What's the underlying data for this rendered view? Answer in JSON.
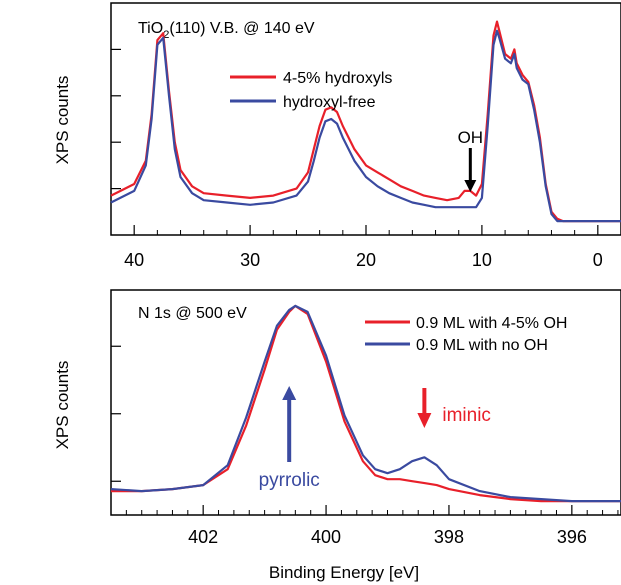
{
  "chart_data": [
    {
      "type": "line",
      "title": "TiO₂(110) V.B. @ 140 eV",
      "title_main": "TiO",
      "title_sub": "2",
      "title_rest": "(110) V.B. @ 140 eV",
      "ylabel": "XPS counts",
      "xlim": [
        42,
        -2
      ],
      "x_reversed": true,
      "x_ticks": [
        40,
        30,
        20,
        10,
        0
      ],
      "x_tick_labels": [
        "40",
        "30",
        "20",
        "10",
        "0"
      ],
      "legend_position": "top-center",
      "series": [
        {
          "name": "4-5% hydroxyls",
          "color": "#e8202a",
          "x": [
            42,
            40,
            39,
            38.5,
            38,
            37.5,
            37,
            36.5,
            36,
            35,
            34,
            32,
            30,
            28,
            26,
            25,
            24.5,
            24,
            23.5,
            23,
            22.5,
            22,
            21,
            20,
            19,
            18,
            17,
            16,
            15,
            14,
            13,
            12,
            11.5,
            11,
            10.5,
            10,
            9.5,
            9,
            8.7,
            8.5,
            8,
            7.5,
            7.2,
            7,
            6.5,
            6,
            5.5,
            5,
            4.5,
            4,
            3.5,
            3,
            2,
            0,
            -2
          ],
          "y": [
            0.25,
            0.3,
            0.4,
            0.6,
            0.92,
            0.95,
            0.7,
            0.48,
            0.36,
            0.29,
            0.26,
            0.25,
            0.24,
            0.25,
            0.28,
            0.35,
            0.45,
            0.55,
            0.62,
            0.63,
            0.61,
            0.55,
            0.45,
            0.38,
            0.35,
            0.32,
            0.29,
            0.27,
            0.25,
            0.24,
            0.23,
            0.24,
            0.27,
            0.27,
            0.25,
            0.3,
            0.6,
            0.94,
            1.0,
            0.96,
            0.86,
            0.84,
            0.88,
            0.82,
            0.77,
            0.74,
            0.64,
            0.5,
            0.3,
            0.18,
            0.15,
            0.14,
            0.14,
            0.14,
            0.14
          ]
        },
        {
          "name": "hydroxyl-free",
          "color": "#3a4aa0",
          "x": [
            42,
            40,
            39,
            38.5,
            38,
            37.5,
            37,
            36.5,
            36,
            35,
            34,
            32,
            30,
            28,
            26,
            25,
            24.5,
            24,
            23.5,
            23,
            22.5,
            22,
            21,
            20,
            19,
            18,
            17,
            16,
            15,
            14,
            13,
            12,
            11.5,
            11,
            10.5,
            10,
            9.5,
            9,
            8.7,
            8.5,
            8,
            7.5,
            7.2,
            7,
            6.5,
            6,
            5.5,
            5,
            4.5,
            4,
            3.5,
            3,
            2,
            0,
            -2
          ],
          "y": [
            0.22,
            0.27,
            0.38,
            0.58,
            0.9,
            0.93,
            0.68,
            0.45,
            0.33,
            0.26,
            0.23,
            0.22,
            0.21,
            0.22,
            0.25,
            0.31,
            0.4,
            0.5,
            0.57,
            0.58,
            0.56,
            0.5,
            0.4,
            0.33,
            0.29,
            0.26,
            0.24,
            0.22,
            0.21,
            0.2,
            0.2,
            0.2,
            0.2,
            0.2,
            0.2,
            0.24,
            0.55,
            0.9,
            0.96,
            0.93,
            0.84,
            0.82,
            0.86,
            0.8,
            0.75,
            0.73,
            0.62,
            0.48,
            0.29,
            0.17,
            0.14,
            0.14,
            0.14,
            0.14,
            0.14
          ]
        }
      ],
      "annotations": [
        {
          "text": "OH",
          "x": 11,
          "arrow_color": "#000000"
        }
      ]
    },
    {
      "type": "line",
      "title": "N 1s @ 500 eV",
      "ylabel": "XPS counts",
      "xlabel": "Binding Energy [eV]",
      "xlim": [
        403.5,
        395.2
      ],
      "x_reversed": true,
      "x_ticks": [
        402,
        400,
        398,
        396
      ],
      "x_tick_labels": [
        "402",
        "400",
        "398",
        "396"
      ],
      "legend_position": "top-right",
      "series": [
        {
          "name": "0.9 ML with 4-5% OH",
          "color": "#e8202a",
          "x": [
            403.5,
            403.0,
            402.5,
            402.0,
            401.6,
            401.3,
            401.0,
            400.8,
            400.6,
            400.5,
            400.3,
            400.0,
            399.7,
            399.4,
            399.2,
            399.0,
            398.8,
            398.6,
            398.4,
            398.2,
            398.0,
            397.5,
            397.0,
            396.5,
            396.0,
            395.5,
            395.2
          ],
          "y": [
            0.07,
            0.07,
            0.08,
            0.1,
            0.18,
            0.4,
            0.68,
            0.88,
            0.97,
            1.0,
            0.96,
            0.72,
            0.42,
            0.22,
            0.15,
            0.13,
            0.13,
            0.12,
            0.11,
            0.1,
            0.08,
            0.05,
            0.03,
            0.02,
            0.02,
            0.02,
            0.02
          ]
        },
        {
          "name": "0.9 ML with no OH",
          "color": "#3a4aa0",
          "x": [
            403.5,
            403.0,
            402.5,
            402.0,
            401.6,
            401.3,
            401.0,
            400.8,
            400.6,
            400.5,
            400.3,
            400.0,
            399.7,
            399.4,
            399.2,
            399.0,
            398.8,
            398.6,
            398.4,
            398.2,
            398.0,
            397.5,
            397.0,
            396.5,
            396.0,
            395.5,
            395.2
          ],
          "y": [
            0.08,
            0.07,
            0.08,
            0.1,
            0.2,
            0.44,
            0.72,
            0.9,
            0.98,
            1.0,
            0.97,
            0.75,
            0.45,
            0.25,
            0.18,
            0.16,
            0.18,
            0.22,
            0.24,
            0.2,
            0.13,
            0.07,
            0.04,
            0.03,
            0.02,
            0.02,
            0.02
          ]
        }
      ],
      "annotations": [
        {
          "text": "pyrrolic",
          "x": 400.6,
          "arrow_color": "#3a4aa0"
        },
        {
          "text": "iminic",
          "x": 398.4,
          "arrow_color": "#e8202a"
        }
      ]
    }
  ]
}
